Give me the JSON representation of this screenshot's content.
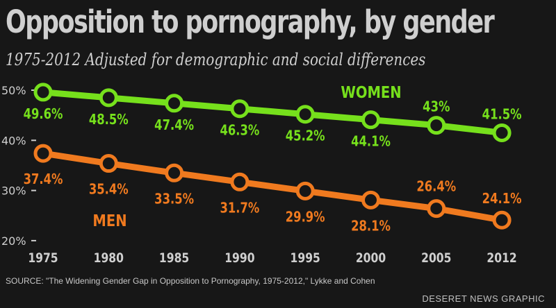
{
  "title": "Opposition to pornography, by gender",
  "subtitle": "1975-2012 Adjusted for demographic and social differences",
  "source": "SOURCE: \"The Widening Gender Gap in Opposition to Pornography, 1975-2012,\" Lykke and Cohen",
  "credit": "DESERET NEWS GRAPHIC",
  "colors": {
    "background": "#171717",
    "women": "#76e01c",
    "men": "#f07a1f",
    "text": "#cfcfcf"
  },
  "chart_data": {
    "type": "line",
    "title": "Opposition to pornography, by gender",
    "subtitle": "1975-2012 Adjusted for demographic and social differences",
    "x": [
      1975,
      1980,
      1985,
      1990,
      1995,
      2000,
      2005,
      2012
    ],
    "x_tick_labels": [
      "1975",
      "1980",
      "1985",
      "1990",
      "1995",
      "2000",
      "2005",
      "2012"
    ],
    "y_ticks": [
      20,
      30,
      40,
      50
    ],
    "y_tick_labels": [
      "20%",
      "30%",
      "40%",
      "50%"
    ],
    "ylim": [
      20,
      50
    ],
    "grid": false,
    "legend": "inline labels",
    "series": [
      {
        "name": "WOMEN",
        "values": [
          49.6,
          48.5,
          47.4,
          46.3,
          45.2,
          44.1,
          43,
          41.5
        ],
        "labels": [
          "49.6%",
          "48.5%",
          "47.4%",
          "46.3%",
          "45.2%",
          "44.1%",
          "43%",
          "41.5%"
        ],
        "color": "#76e01c"
      },
      {
        "name": "MEN",
        "values": [
          37.4,
          35.4,
          33.5,
          31.7,
          29.9,
          28.1,
          26.4,
          24.1
        ],
        "labels": [
          "37.4%",
          "35.4%",
          "33.5%",
          "31.7%",
          "29.9%",
          "28.1%",
          "26.4%",
          "24.1%"
        ],
        "color": "#f07a1f"
      }
    ]
  }
}
